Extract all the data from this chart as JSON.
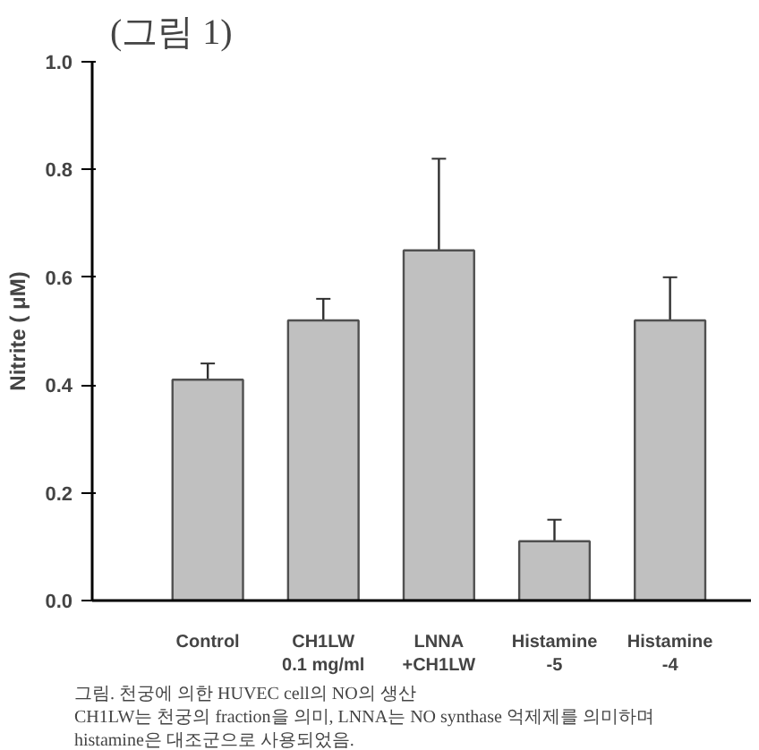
{
  "chart_data": {
    "type": "bar",
    "title": "(그림 1)",
    "ylabel": "Nitrite ( μM)",
    "categories": [
      "Control",
      "CH1LW\n0.1 mg/ml",
      "LNNA\n+CH1LW",
      "Histamine\n-5",
      "Histamine\n-4"
    ],
    "values": [
      0.41,
      0.52,
      0.65,
      0.11,
      0.52
    ],
    "errors": [
      [
        0.41,
        0.44
      ],
      [
        0.52,
        0.56
      ],
      [
        0.65,
        0.82
      ],
      [
        0.11,
        0.15
      ],
      [
        0.52,
        0.6
      ]
    ],
    "color": "#c0c0c0",
    "ylim": [
      0,
      1
    ],
    "yticks": [
      {
        "value": 0,
        "label": "0.0"
      },
      0.2,
      0.4,
      0.6,
      0.8,
      {
        "value": 1,
        "label": "1.0"
      }
    ],
    "grid": false,
    "annotations": [
      "그림. 천궁에 의한 HUVEC cell의  NO의 생산",
      "CH1LW는 천궁의 fraction을 의미, LNNA는 NO synthase 억제제를 의미하며",
      "histamine은 대조군으로 사용되었음."
    ]
  }
}
